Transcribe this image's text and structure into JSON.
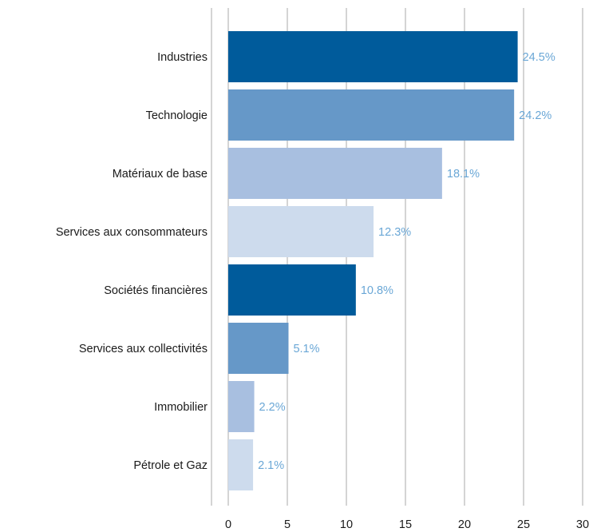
{
  "chart_data": {
    "type": "bar",
    "orientation": "horizontal",
    "categories": [
      "Industries",
      "Technologie",
      "Matériaux de base",
      "Services aux consommateurs",
      "Sociétés financières",
      "Services aux collectivités",
      "Immobilier",
      "Pétrole et Gaz"
    ],
    "values": [
      24.5,
      24.2,
      18.1,
      12.3,
      10.8,
      5.1,
      2.2,
      2.1
    ],
    "data_labels": [
      "24.5%",
      "24.2%",
      "18.1%",
      "12.3%",
      "10.8%",
      "5.1%",
      "2.2%",
      "2.1%"
    ],
    "bar_colors": [
      "#005b9b",
      "#6698c8",
      "#a8bfe0",
      "#cddbed",
      "#005b9b",
      "#6698c8",
      "#a8bfe0",
      "#cddbed"
    ],
    "label_color": "#6aa7d6",
    "grid_color": "#d4d4d4",
    "xlim": [
      0,
      30
    ],
    "xticks": [
      0,
      5,
      10,
      15,
      20,
      25,
      30
    ],
    "grid": true,
    "legend": "none"
  }
}
